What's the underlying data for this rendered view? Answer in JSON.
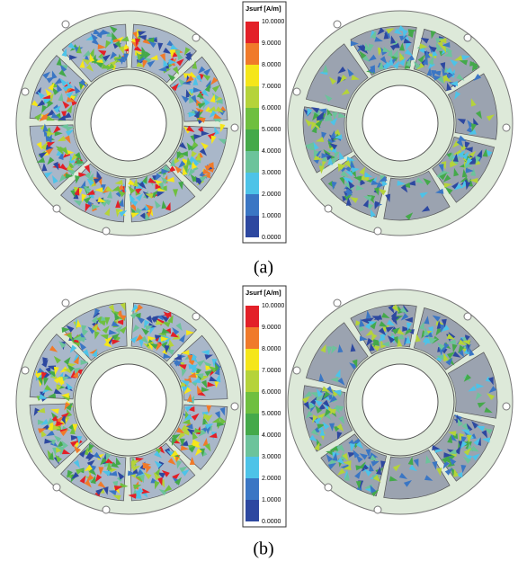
{
  "panels": [
    {
      "caption": "(a)",
      "legend": {
        "title": "Jsurf [A/m]",
        "labels": [
          "10.0000",
          "9.0000",
          "8.0000",
          "7.0000",
          "6.0000",
          "5.0000",
          "4.0000",
          "3.0000",
          "2.0000",
          "1.0000",
          "0.0000"
        ]
      }
    },
    {
      "caption": "(b)",
      "legend": {
        "title": "Jsurf [A/m]",
        "labels": [
          "10.0000",
          "9.0000",
          "8.0000",
          "7.0000",
          "6.0000",
          "5.0000",
          "4.0000",
          "3.0000",
          "2.0000",
          "1.0000",
          "0.0000"
        ]
      }
    }
  ]
}
